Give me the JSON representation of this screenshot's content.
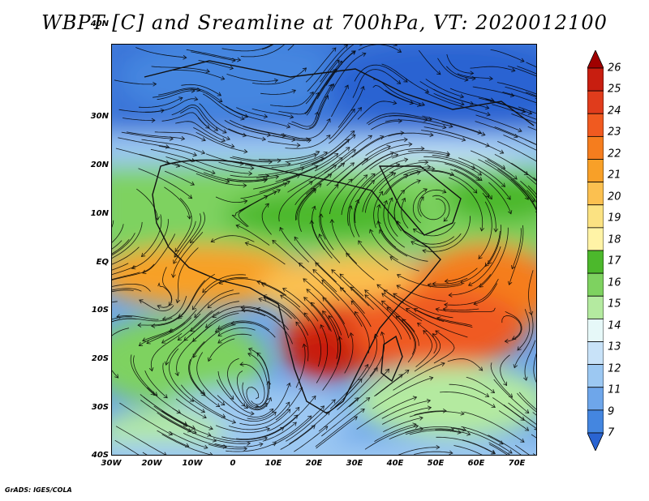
{
  "title": "WBPT [C] and Sreamline at 700hPa, VT: 2020012100",
  "footer": "GrADS: IGES/COLA",
  "map": {
    "lon_range": [
      -30,
      75
    ],
    "lat_range": [
      -40,
      45
    ],
    "lat_ticks": [
      "40N",
      "30N",
      "20N",
      "10N",
      "EQ",
      "10S",
      "20S",
      "30S",
      "40S"
    ],
    "lon_ticks": [
      "30W",
      "20W",
      "10W",
      "0",
      "10E",
      "20E",
      "30E",
      "40E",
      "50E",
      "60E",
      "70E"
    ]
  },
  "colorbar": {
    "labels": [
      "26",
      "25",
      "24",
      "23",
      "22",
      "21",
      "20",
      "19",
      "18",
      "17",
      "16",
      "15",
      "14",
      "13",
      "12",
      "11",
      "9",
      "7"
    ],
    "colors": [
      "#a00000",
      "#c81e10",
      "#e03c1c",
      "#f05a20",
      "#f57d1e",
      "#f8a028",
      "#fbc050",
      "#fbe282",
      "#fff3a6",
      "#4cb82c",
      "#7ed260",
      "#b4eaa0",
      "#e6f8f8",
      "#c8e2f8",
      "#9cc8f2",
      "#6ea6ea",
      "#4486e0",
      "#2a64d2"
    ]
  }
}
